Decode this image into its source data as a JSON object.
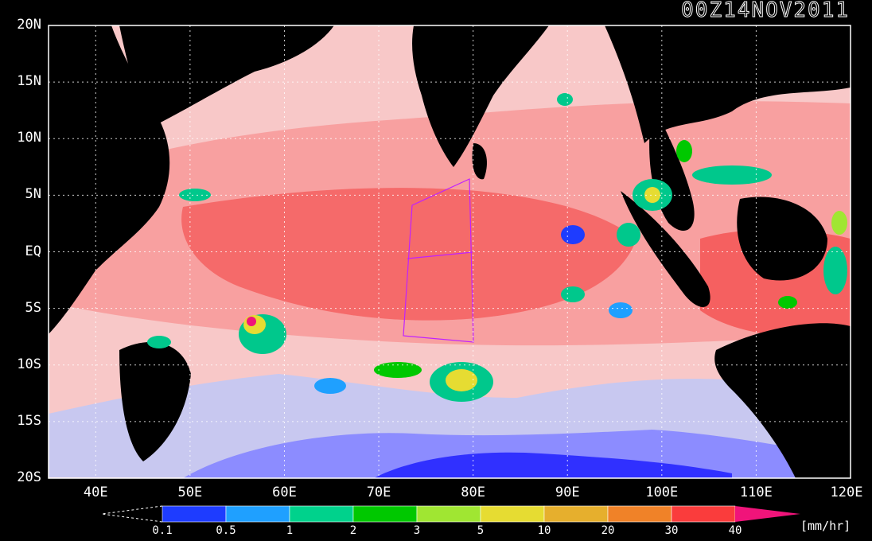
{
  "timestamp": "00Z14NOV2011",
  "lat_labels": [
    "20N",
    "15N",
    "10N",
    "5N",
    "EQ",
    "5S",
    "10S",
    "15S",
    "20S"
  ],
  "lon_labels": [
    "40E",
    "50E",
    "60E",
    "70E",
    "80E",
    "90E",
    "100E",
    "110E",
    "120E"
  ],
  "colorbar": {
    "ticks": [
      "0.1",
      "0.5",
      "1",
      "2",
      "3",
      "5",
      "10",
      "20",
      "30",
      "40"
    ],
    "unit": "[mm/hr]",
    "colors": [
      "#1e3cff",
      "#1fa0ff",
      "#00d28c",
      "#00c800",
      "#a0e632",
      "#e6dc32",
      "#e6af2d",
      "#f08228",
      "#fa3c3c",
      "#f0147a"
    ]
  },
  "legend_colors": {
    "land": "#000000",
    "light_rain": "#c8c8f0",
    "medium_rain": "#5a5aff",
    "heavy_rain": "#3030ff",
    "tropical_warm": "#f0a0a0",
    "tropical_hot": "#ff5050"
  }
}
